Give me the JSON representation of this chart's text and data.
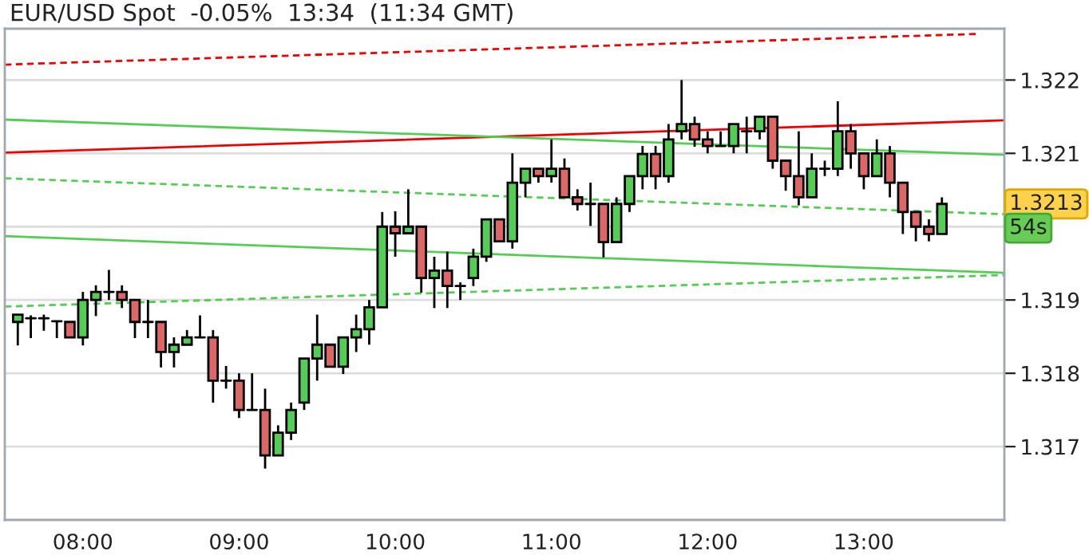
{
  "chart_data": {
    "type": "candlestick",
    "title": "EUR/USD Spot  -0.05%  13:34  (11:34 GMT)",
    "x": [
      7.5833,
      7.6667,
      7.75,
      7.8333,
      7.9167,
      8,
      8.0833,
      8.1667,
      8.25,
      8.3333,
      8.4167,
      8.5,
      8.5833,
      8.6667,
      8.75,
      8.8333,
      8.9167,
      9,
      9.0833,
      9.1667,
      9.25,
      9.3333,
      9.4167,
      9.5,
      9.5833,
      9.6667,
      9.75,
      9.8333,
      9.9167,
      10,
      10.0833,
      10.1667,
      10.25,
      10.3333,
      10.4167,
      10.5,
      10.5833,
      10.6667,
      10.75,
      10.8333,
      10.9167,
      11,
      11.0833,
      11.1667,
      11.25,
      11.3333,
      11.4167,
      11.5,
      11.5833,
      11.6667,
      11.75,
      11.8333,
      11.9167,
      12,
      12.0833,
      12.1667,
      12.25,
      12.3333,
      12.4167,
      12.5,
      12.5833,
      12.6667,
      12.75,
      12.8333,
      12.9167,
      13,
      13.0833,
      13.1667,
      13.25,
      13.3333,
      13.4167,
      13.5
    ],
    "ohlc": [
      [
        1.3187,
        1.3188,
        1.31838,
        1.3188
      ],
      [
        1.31875,
        1.31879,
        1.31848,
        1.31875
      ],
      [
        1.31875,
        1.3188,
        1.31858,
        1.31875
      ],
      [
        1.31871,
        1.31872,
        1.31848,
        1.31871
      ],
      [
        1.3187,
        1.3187,
        1.31849,
        1.31849
      ],
      [
        1.31849,
        1.31911,
        1.31838,
        1.319
      ],
      [
        1.319,
        1.3192,
        1.31878,
        1.31911
      ],
      [
        1.31911,
        1.31941,
        1.319,
        1.31911
      ],
      [
        1.31911,
        1.3192,
        1.31889,
        1.319
      ],
      [
        1.319,
        1.319,
        1.31848,
        1.3187
      ],
      [
        1.3187,
        1.319,
        1.31848,
        1.3187
      ],
      [
        1.3187,
        1.3187,
        1.31808,
        1.31829
      ],
      [
        1.31829,
        1.31849,
        1.31808,
        1.31839
      ],
      [
        1.31839,
        1.31859,
        1.31839,
        1.31849
      ],
      [
        1.31849,
        1.31879,
        1.31849,
        1.31849
      ],
      [
        1.31849,
        1.31859,
        1.3176,
        1.3179
      ],
      [
        1.3179,
        1.3181,
        1.31779,
        1.3179
      ],
      [
        1.3179,
        1.318,
        1.31739,
        1.3175
      ],
      [
        1.3175,
        1.318,
        1.3175,
        1.3175
      ],
      [
        1.3175,
        1.31779,
        1.3167,
        1.31688
      ],
      [
        1.31688,
        1.31729,
        1.31688,
        1.31719
      ],
      [
        1.31719,
        1.3176,
        1.31709,
        1.3175
      ],
      [
        1.3176,
        1.3182,
        1.3175,
        1.3182
      ],
      [
        1.3182,
        1.3188,
        1.3179,
        1.31839
      ],
      [
        1.31839,
        1.31839,
        1.31809,
        1.31809
      ],
      [
        1.31809,
        1.31849,
        1.31799,
        1.31849
      ],
      [
        1.31849,
        1.3188,
        1.31829,
        1.3186
      ],
      [
        1.3186,
        1.319,
        1.31839,
        1.3189
      ],
      [
        1.3189,
        1.3202,
        1.3189,
        1.32
      ],
      [
        1.32,
        1.32021,
        1.31959,
        1.31991
      ],
      [
        1.31991,
        1.32051,
        1.31991,
        1.32
      ],
      [
        1.32,
        1.32,
        1.3191,
        1.3193
      ],
      [
        1.3193,
        1.31959,
        1.31889,
        1.3194
      ],
      [
        1.3194,
        1.31966,
        1.31889,
        1.31919
      ],
      [
        1.31919,
        1.31924,
        1.319,
        1.31919
      ],
      [
        1.3193,
        1.3197,
        1.31919,
        1.31959
      ],
      [
        1.31959,
        1.3201,
        1.31952,
        1.3201
      ],
      [
        1.3201,
        1.3201,
        1.3198,
        1.3198
      ],
      [
        1.3198,
        1.321,
        1.3197,
        1.3206
      ],
      [
        1.3206,
        1.32079,
        1.3204,
        1.32079
      ],
      [
        1.32079,
        1.32079,
        1.3206,
        1.32069
      ],
      [
        1.32069,
        1.32119,
        1.3206,
        1.32079
      ],
      [
        1.32079,
        1.32093,
        1.3204,
        1.3204
      ],
      [
        1.3204,
        1.32051,
        1.32022,
        1.32031
      ],
      [
        1.32031,
        1.3206,
        1.32001,
        1.32031
      ],
      [
        1.32031,
        1.32031,
        1.31958,
        1.31979
      ],
      [
        1.31979,
        1.3204,
        1.31979,
        1.32031
      ],
      [
        1.32031,
        1.32069,
        1.3202,
        1.32069
      ],
      [
        1.32069,
        1.3211,
        1.32051,
        1.32099
      ],
      [
        1.32099,
        1.3211,
        1.32051,
        1.32069
      ],
      [
        1.32069,
        1.3214,
        1.3206,
        1.32119
      ],
      [
        1.3213,
        1.322,
        1.32119,
        1.3214
      ],
      [
        1.3214,
        1.3215,
        1.32109,
        1.32119
      ],
      [
        1.32119,
        1.3213,
        1.321,
        1.3211
      ],
      [
        1.3211,
        1.3213,
        1.3211,
        1.3211
      ],
      [
        1.3211,
        1.3214,
        1.321,
        1.3214
      ],
      [
        1.3213,
        1.3215,
        1.321,
        1.3213
      ],
      [
        1.3213,
        1.3215,
        1.32119,
        1.3215
      ],
      [
        1.3215,
        1.3215,
        1.32079,
        1.3209
      ],
      [
        1.3209,
        1.3209,
        1.32049,
        1.32069
      ],
      [
        1.32069,
        1.3213,
        1.32029,
        1.3204
      ],
      [
        1.3204,
        1.321,
        1.3204,
        1.32079
      ],
      [
        1.32079,
        1.3209,
        1.32069,
        1.32079
      ],
      [
        1.32079,
        1.32171,
        1.32069,
        1.3213
      ],
      [
        1.3213,
        1.3214,
        1.32079,
        1.321
      ],
      [
        1.321,
        1.321,
        1.32051,
        1.32069
      ],
      [
        1.32069,
        1.32119,
        1.32069,
        1.321
      ],
      [
        1.321,
        1.3211,
        1.3204,
        1.3206
      ],
      [
        1.3206,
        1.3206,
        1.3199,
        1.3202
      ],
      [
        1.3202,
        1.3202,
        1.3198,
        1.32
      ],
      [
        1.32,
        1.3201,
        1.3198,
        1.3199
      ],
      [
        1.3199,
        1.3204,
        1.3199,
        1.32031
      ]
    ],
    "series": [
      {
        "type": "line",
        "x": [
          7.5,
          13.74
        ],
        "values": [
          1.32221,
          1.32263
        ],
        "color": "#ee0000",
        "line_style": "dashed"
      },
      {
        "type": "line",
        "x": [
          7.5,
          13.9
        ],
        "values": [
          1.32101,
          1.32145
        ],
        "color": "#ee0000",
        "line_style": "solid"
      },
      {
        "type": "line",
        "x": [
          7.5,
          13.9
        ],
        "values": [
          1.32146,
          1.32098
        ],
        "color": "#55cc55",
        "line_style": "solid"
      },
      {
        "type": "line",
        "x": [
          7.5,
          13.9
        ],
        "values": [
          1.32066,
          1.32017
        ],
        "color": "#55cc55",
        "line_style": "dashed"
      },
      {
        "type": "line",
        "x": [
          7.5,
          13.9
        ],
        "values": [
          1.31987,
          1.31937
        ],
        "color": "#55cc55",
        "line_style": "solid"
      },
      {
        "type": "line",
        "x": [
          7.5,
          13.9
        ],
        "values": [
          1.31891,
          1.31934
        ],
        "color": "#55cc55",
        "line_style": "dashed"
      }
    ],
    "xlim": [
      7.5,
      13.9
    ],
    "xticks": [
      {
        "value": 8,
        "label": "08:00"
      },
      {
        "value": 9,
        "label": "09:00"
      },
      {
        "value": 10,
        "label": "10:00"
      },
      {
        "value": 11,
        "label": "11:00"
      },
      {
        "value": 12,
        "label": "12:00"
      },
      {
        "value": 13,
        "label": "13:00"
      }
    ],
    "ylim": [
      1.316,
      1.3227
    ],
    "yticks": [
      1.317,
      1.318,
      1.319,
      {
        "value": 1.32,
        "label": null
      },
      1.321,
      1.322
    ],
    "grid": "y",
    "annotations": [
      "1.3213",
      "54s"
    ]
  }
}
